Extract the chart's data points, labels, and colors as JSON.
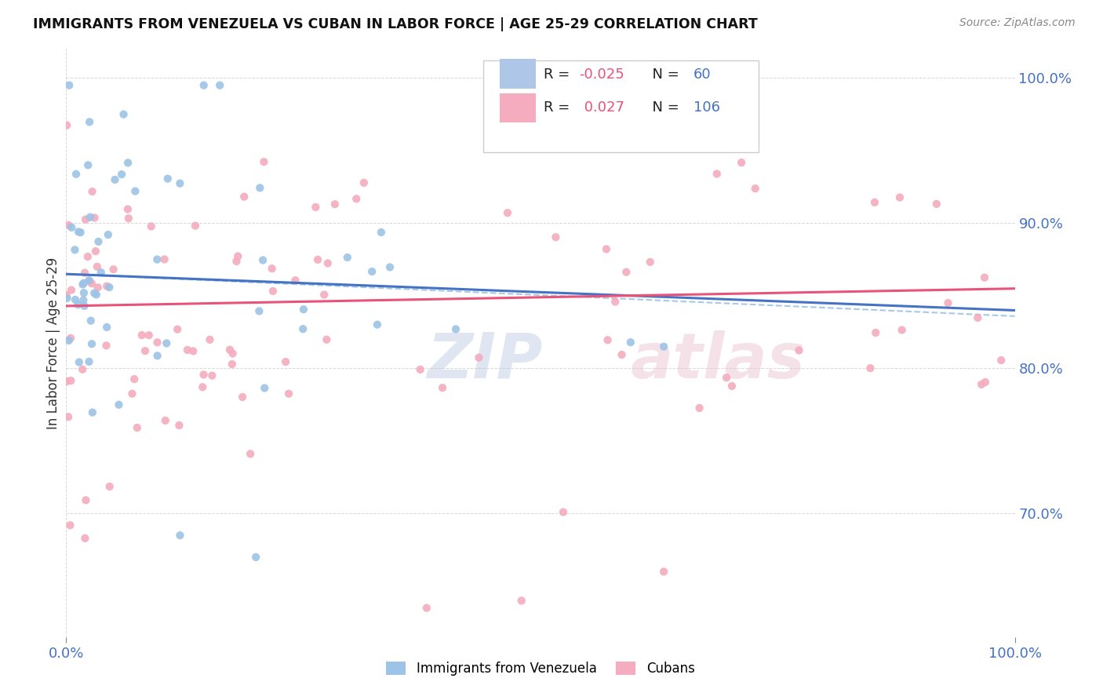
{
  "title": "IMMIGRANTS FROM VENEZUELA VS CUBAN IN LABOR FORCE | AGE 25-29 CORRELATION CHART",
  "source_text": "Source: ZipAtlas.com",
  "ylabel": "In Labor Force | Age 25-29",
  "ytick_positions": [
    0.7,
    0.8,
    0.9,
    1.0
  ],
  "ytick_labels_right": [
    "70.0%",
    "80.0%",
    "90.0%",
    "100.0%"
  ],
  "xtick_positions": [
    0.0,
    1.0
  ],
  "xtick_labels": [
    "0.0%",
    "100.0%"
  ],
  "xlim": [
    0.0,
    1.0
  ],
  "ylim": [
    0.615,
    1.02
  ],
  "venezuela_line_color": "#4472c4",
  "cuban_line_color": "#e8537a",
  "venezuela_dot_color": "#9dc3e6",
  "cuban_dot_color": "#f4acbe",
  "dashed_line_color": "#9dc3e6",
  "background_color": "#ffffff",
  "grid_color": "#c8c8c8",
  "legend_box_color": "#aec6e8",
  "legend_box_color2": "#f4acbe",
  "watermark_zip_color": "#b8c8e0",
  "watermark_atlas_color": "#e8c0cc",
  "r_value_color": "#e8537a",
  "n_value_color": "#4472c4",
  "tick_label_color": "#4472c4"
}
